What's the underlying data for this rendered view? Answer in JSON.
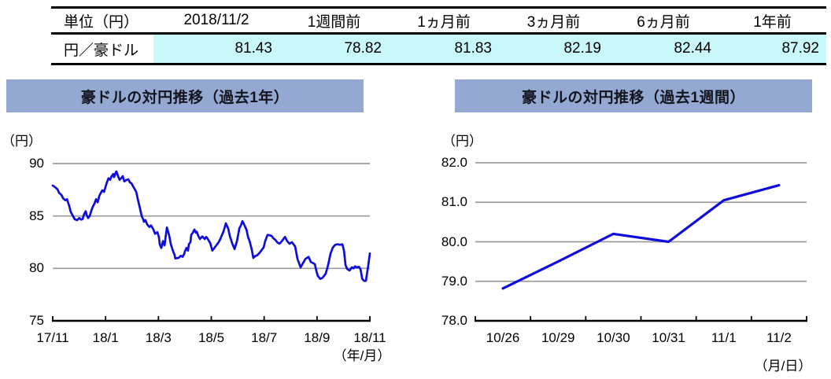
{
  "table": {
    "headers": [
      "単位（円）",
      "2018/11/2",
      "1週間前",
      "1ヵ月前",
      "3ヵ月前",
      "6ヵ月前",
      "1年前"
    ],
    "row_label": "円／豪ドル",
    "values": [
      "81.43",
      "78.82",
      "81.83",
      "82.19",
      "82.44",
      "87.92"
    ],
    "highlight_color": "#c9f8fa"
  },
  "chart_data": [
    {
      "type": "line",
      "title": "豪ドルの対円推移（過去1年）",
      "unit_label": "（円）",
      "xaxis_label": "（年/月）",
      "xticks": [
        "17/11",
        "18/1",
        "18/3",
        "18/5",
        "18/7",
        "18/9",
        "18/11"
      ],
      "ytick_labels": [
        "90",
        "85",
        "80",
        "75"
      ],
      "yticks": [
        90,
        85,
        80,
        75
      ],
      "ylim": [
        75,
        90
      ],
      "xlim_months": [
        0,
        12
      ],
      "grid": true,
      "legend": "none",
      "line_color": "#0d0ddd",
      "grid_color": "#9c9c9c",
      "points": [
        [
          0.0,
          87.9
        ],
        [
          0.09,
          87.75
        ],
        [
          0.18,
          87.55
        ],
        [
          0.24,
          87.2
        ],
        [
          0.33,
          87.0
        ],
        [
          0.39,
          86.7
        ],
        [
          0.48,
          86.5
        ],
        [
          0.54,
          86.6
        ],
        [
          0.63,
          85.9
        ],
        [
          0.68,
          85.4
        ],
        [
          0.74,
          85.1
        ],
        [
          0.83,
          84.7
        ],
        [
          0.92,
          84.6
        ],
        [
          1.01,
          84.8
        ],
        [
          1.07,
          84.65
        ],
        [
          1.13,
          84.7
        ],
        [
          1.19,
          85.2
        ],
        [
          1.25,
          85.45
        ],
        [
          1.28,
          85.1
        ],
        [
          1.34,
          84.8
        ],
        [
          1.4,
          85.0
        ],
        [
          1.46,
          85.5
        ],
        [
          1.52,
          85.9
        ],
        [
          1.58,
          86.2
        ],
        [
          1.64,
          86.6
        ],
        [
          1.7,
          86.3
        ],
        [
          1.76,
          86.9
        ],
        [
          1.82,
          87.2
        ],
        [
          1.88,
          87.45
        ],
        [
          1.94,
          87.3
        ],
        [
          2.0,
          87.8
        ],
        [
          2.05,
          88.2
        ],
        [
          2.11,
          88.6
        ],
        [
          2.17,
          88.45
        ],
        [
          2.23,
          88.8
        ],
        [
          2.29,
          89.0
        ],
        [
          2.32,
          88.7
        ],
        [
          2.38,
          89.1
        ],
        [
          2.41,
          89.25
        ],
        [
          2.47,
          88.8
        ],
        [
          2.53,
          88.45
        ],
        [
          2.59,
          88.6
        ],
        [
          2.65,
          88.8
        ],
        [
          2.71,
          88.3
        ],
        [
          2.77,
          88.4
        ],
        [
          2.86,
          88.5
        ],
        [
          2.92,
          88.2
        ],
        [
          2.98,
          88.1
        ],
        [
          3.07,
          87.7
        ],
        [
          3.16,
          87.3
        ],
        [
          3.22,
          86.6
        ],
        [
          3.28,
          85.95
        ],
        [
          3.37,
          84.95
        ],
        [
          3.42,
          84.7
        ],
        [
          3.45,
          84.45
        ],
        [
          3.51,
          84.6
        ],
        [
          3.57,
          84.2
        ],
        [
          3.66,
          83.95
        ],
        [
          3.72,
          84.1
        ],
        [
          3.81,
          83.7
        ],
        [
          3.87,
          83.3
        ],
        [
          3.96,
          83.45
        ],
        [
          4.02,
          82.95
        ],
        [
          4.05,
          82.3
        ],
        [
          4.11,
          81.95
        ],
        [
          4.17,
          82.6
        ],
        [
          4.23,
          82.2
        ],
        [
          4.26,
          82.8
        ],
        [
          4.32,
          83.9
        ],
        [
          4.41,
          83.1
        ],
        [
          4.47,
          82.3
        ],
        [
          4.56,
          81.6
        ],
        [
          4.61,
          81.3
        ],
        [
          4.64,
          80.95
        ],
        [
          4.76,
          81.0
        ],
        [
          4.85,
          81.2
        ],
        [
          4.91,
          81.1
        ],
        [
          4.97,
          81.35
        ],
        [
          5.0,
          81.6
        ],
        [
          5.06,
          81.95
        ],
        [
          5.12,
          81.7
        ],
        [
          5.15,
          82.3
        ],
        [
          5.21,
          82.5
        ],
        [
          5.24,
          83.2
        ],
        [
          5.3,
          83.4
        ],
        [
          5.36,
          83.7
        ],
        [
          5.42,
          83.4
        ],
        [
          5.45,
          83.5
        ],
        [
          5.51,
          83.1
        ],
        [
          5.57,
          82.8
        ],
        [
          5.66,
          83.05
        ],
        [
          5.75,
          82.8
        ],
        [
          5.81,
          83.0
        ],
        [
          5.87,
          82.8
        ],
        [
          5.96,
          82.4
        ],
        [
          6.04,
          81.7
        ],
        [
          6.13,
          82.0
        ],
        [
          6.19,
          82.2
        ],
        [
          6.28,
          82.5
        ],
        [
          6.34,
          82.8
        ],
        [
          6.46,
          83.5
        ],
        [
          6.55,
          84.3
        ],
        [
          6.64,
          83.8
        ],
        [
          6.7,
          83.1
        ],
        [
          6.79,
          82.4
        ],
        [
          6.88,
          81.85
        ],
        [
          6.97,
          82.6
        ],
        [
          7.06,
          83.8
        ],
        [
          7.12,
          84.1
        ],
        [
          7.18,
          84.5
        ],
        [
          7.24,
          84.2
        ],
        [
          7.33,
          83.7
        ],
        [
          7.39,
          83.0
        ],
        [
          7.45,
          82.6
        ],
        [
          7.53,
          81.8
        ],
        [
          7.59,
          81.0
        ],
        [
          7.68,
          81.2
        ],
        [
          7.74,
          81.25
        ],
        [
          7.83,
          81.5
        ],
        [
          7.92,
          81.8
        ],
        [
          7.98,
          82.0
        ],
        [
          8.04,
          82.6
        ],
        [
          8.13,
          83.2
        ],
        [
          8.22,
          83.15
        ],
        [
          8.28,
          83.1
        ],
        [
          8.34,
          82.9
        ],
        [
          8.43,
          82.7
        ],
        [
          8.49,
          82.5
        ],
        [
          8.58,
          82.35
        ],
        [
          8.67,
          82.6
        ],
        [
          8.79,
          83.0
        ],
        [
          8.87,
          82.6
        ],
        [
          8.96,
          82.35
        ],
        [
          9.05,
          82.5
        ],
        [
          9.17,
          82.1
        ],
        [
          9.26,
          80.9
        ],
        [
          9.38,
          80.1
        ],
        [
          9.47,
          80.5
        ],
        [
          9.56,
          80.9
        ],
        [
          9.68,
          81.1
        ],
        [
          9.77,
          80.6
        ],
        [
          9.86,
          80.5
        ],
        [
          9.92,
          80.4
        ],
        [
          9.98,
          79.7
        ],
        [
          10.03,
          79.3
        ],
        [
          10.12,
          79.0
        ],
        [
          10.21,
          79.1
        ],
        [
          10.33,
          79.5
        ],
        [
          10.42,
          80.3
        ],
        [
          10.51,
          81.4
        ],
        [
          10.6,
          82.0
        ],
        [
          10.69,
          82.25
        ],
        [
          10.78,
          82.3
        ],
        [
          10.87,
          82.25
        ],
        [
          10.96,
          82.3
        ],
        [
          11.02,
          81.7
        ],
        [
          11.08,
          80.3
        ],
        [
          11.14,
          79.95
        ],
        [
          11.23,
          79.8
        ],
        [
          11.32,
          80.1
        ],
        [
          11.38,
          80.0
        ],
        [
          11.44,
          80.2
        ],
        [
          11.5,
          80.1
        ],
        [
          11.59,
          80.15
        ],
        [
          11.65,
          79.9
        ],
        [
          11.71,
          79.0
        ],
        [
          11.79,
          78.8
        ],
        [
          11.85,
          78.82
        ],
        [
          11.91,
          79.8
        ],
        [
          11.94,
          80.3
        ],
        [
          12.0,
          81.43
        ]
      ]
    },
    {
      "type": "line",
      "title": "豪ドルの対円推移（過去1週間）",
      "unit_label": "（円）",
      "xaxis_label": "（月/日）",
      "categories": [
        "10/26",
        "10/29",
        "10/30",
        "10/31",
        "11/1",
        "11/2"
      ],
      "values": [
        78.82,
        79.5,
        80.2,
        80.0,
        81.05,
        81.43
      ],
      "ytick_labels": [
        "82.0",
        "81.0",
        "80.0",
        "79.0",
        "78.0"
      ],
      "yticks": [
        82.0,
        81.0,
        80.0,
        79.0,
        78.0
      ],
      "ylim": [
        78,
        82
      ],
      "grid": true,
      "legend": "none",
      "line_color": "#0d0ddd",
      "grid_color": "#9c9c9c"
    }
  ]
}
